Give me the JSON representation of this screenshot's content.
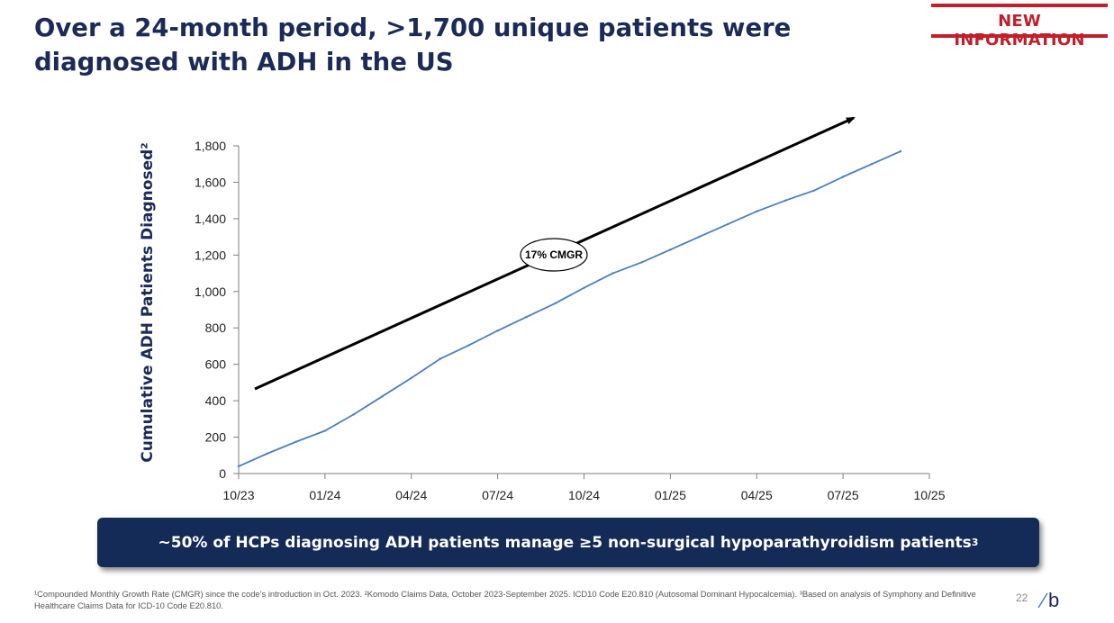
{
  "header": {
    "title": "Over a 24-month period, >1,700 unique patients were diagnosed with ADH in the US",
    "badge": "NEW INFORMATION"
  },
  "chart_data": {
    "type": "line",
    "title": "",
    "xlabel": "",
    "ylabel": "Cumulative ADH Patients Diagnosed²",
    "ylim": [
      0,
      1800
    ],
    "yticks": [
      0,
      200,
      400,
      600,
      800,
      1000,
      1200,
      1400,
      1600,
      1800
    ],
    "ytick_labels": [
      "0",
      "200",
      "400",
      "600",
      "800",
      "1,000",
      "1,200",
      "1,400",
      "1,600",
      "1,800"
    ],
    "xlim": [
      0,
      24
    ],
    "xticks": [
      0,
      3,
      6,
      9,
      12,
      15,
      18,
      21,
      24
    ],
    "xtick_labels": [
      "10/23",
      "01/24",
      "04/24",
      "07/24",
      "10/24",
      "01/25",
      "04/25",
      "07/25",
      "10/25"
    ],
    "series": [
      {
        "name": "Cumulative ADH patients diagnosed",
        "color": "#4a7fc1",
        "x": [
          0,
          1,
          2,
          3,
          4,
          5,
          6,
          7,
          8,
          9,
          10,
          11,
          12,
          13,
          14,
          15,
          16,
          17,
          18,
          19,
          20,
          21,
          22,
          23
        ],
        "values": [
          40,
          110,
          175,
          235,
          325,
          425,
          525,
          630,
          705,
          785,
          860,
          935,
          1020,
          1100,
          1160,
          1230,
          1300,
          1370,
          1440,
          1500,
          1555,
          1630,
          1700,
          1770
        ]
      }
    ],
    "annotations": [
      {
        "text": "17% CMGR",
        "type": "trend-arrow",
        "color": "#000000"
      }
    ]
  },
  "callout": {
    "text": "~50% of HCPs diagnosing ADH patients manage ≥5 non-surgical hypoparathyroidism patients",
    "sup": "3"
  },
  "footnote": "¹Compounded Monthly Growth Rate (CMGR) since the code’s introduction in Oct. 2023. ²Komodo Claims Data, October 2023-September 2025. ICD10 Code E20.810 (Autosomal Dominant Hypocalcemia). ³Based on analysis of Symphony and Definitive Healthcare Claims Data for ICD-10 Code E20.810.",
  "page_number": "22",
  "logo": {
    "text": "b",
    "accent": "#4a7fc1"
  }
}
